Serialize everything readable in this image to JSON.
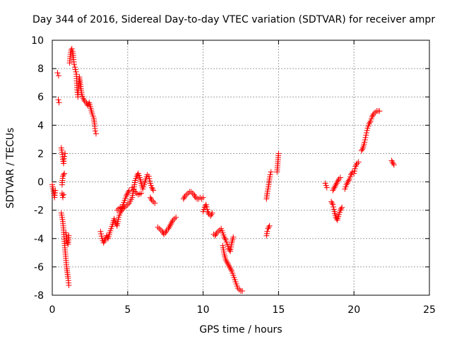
{
  "chart_data": {
    "type": "scatter",
    "title": "Day 344 of 2016, Sidereal Day-to-day VTEC variation (SDTVAR) for receiver ampr",
    "xlabel": "GPS time / hours",
    "ylabel": "SDTVAR / TECUs",
    "xlim": [
      0,
      25
    ],
    "ylim": [
      -8,
      10
    ],
    "xticks": [
      0,
      5,
      10,
      15,
      20,
      25
    ],
    "yticks": [
      -8,
      -6,
      -4,
      -2,
      0,
      2,
      4,
      6,
      8,
      10
    ],
    "grid": true,
    "marker": "+",
    "color": "#ff0000",
    "segments": [
      [
        [
          0.0,
          -0.2
        ],
        [
          0.05,
          -0.5
        ],
        [
          0.1,
          -0.8
        ],
        [
          0.15,
          -1.1
        ],
        [
          0.2,
          -0.6
        ]
      ],
      [
        [
          0.35,
          7.7
        ],
        [
          0.42,
          7.5
        ]
      ],
      [
        [
          0.4,
          5.8
        ],
        [
          0.45,
          5.6
        ]
      ],
      [
        [
          0.6,
          2.4
        ],
        [
          0.65,
          2.1
        ],
        [
          0.7,
          1.6
        ],
        [
          0.75,
          1.3
        ],
        [
          0.8,
          1.8
        ],
        [
          0.85,
          2.0
        ]
      ],
      [
        [
          0.65,
          -0.2
        ],
        [
          0.7,
          0.4
        ],
        [
          0.8,
          0.6
        ]
      ],
      [
        [
          0.65,
          -0.8
        ],
        [
          0.7,
          -1.1
        ],
        [
          0.75,
          -0.9
        ]
      ],
      [
        [
          0.6,
          -2.2
        ],
        [
          0.7,
          -2.8
        ],
        [
          0.75,
          -3.4
        ],
        [
          0.8,
          -4.2
        ],
        [
          0.85,
          -4.8
        ],
        [
          0.9,
          -5.4
        ],
        [
          0.95,
          -6.0
        ],
        [
          1.0,
          -6.4
        ],
        [
          1.05,
          -6.8
        ],
        [
          1.1,
          -7.3
        ]
      ],
      [
        [
          0.9,
          -3.6
        ],
        [
          0.95,
          -4.0
        ],
        [
          1.0,
          -4.3
        ],
        [
          1.05,
          -4.4
        ],
        [
          1.1,
          -3.8
        ]
      ],
      [
        [
          1.3,
          9.4
        ],
        [
          1.35,
          9.2
        ],
        [
          1.4,
          8.8
        ],
        [
          1.45,
          8.3
        ],
        [
          1.5,
          8.1
        ],
        [
          1.6,
          7.6
        ],
        [
          1.65,
          6.5
        ],
        [
          1.7,
          6.0
        ],
        [
          1.75,
          6.8
        ],
        [
          1.8,
          7.4
        ],
        [
          1.85,
          7.0
        ],
        [
          1.9,
          6.6
        ],
        [
          1.95,
          6.2
        ],
        [
          2.05,
          5.9
        ],
        [
          2.15,
          5.7
        ],
        [
          2.25,
          5.6
        ],
        [
          2.35,
          5.4
        ],
        [
          2.45,
          5.6
        ],
        [
          2.55,
          5.2
        ],
        [
          2.65,
          4.8
        ],
        [
          2.75,
          4.5
        ],
        [
          2.8,
          4.1
        ],
        [
          2.85,
          3.6
        ],
        [
          2.9,
          3.4
        ]
      ],
      [
        [
          1.15,
          8.4
        ],
        [
          1.2,
          9.0
        ],
        [
          1.25,
          9.3
        ]
      ],
      [
        [
          3.2,
          -3.5
        ],
        [
          3.3,
          -4.0
        ],
        [
          3.4,
          -4.3
        ],
        [
          3.5,
          -4.1
        ],
        [
          3.6,
          -3.8
        ],
        [
          3.7,
          -4.0
        ],
        [
          3.8,
          -3.6
        ],
        [
          3.9,
          -3.3
        ],
        [
          4.0,
          -3.0
        ],
        [
          4.1,
          -2.6
        ],
        [
          4.2,
          -2.9
        ],
        [
          4.3,
          -3.1
        ],
        [
          4.4,
          -2.5
        ],
        [
          4.5,
          -2.2
        ],
        [
          4.6,
          -2.0
        ],
        [
          4.7,
          -1.6
        ],
        [
          4.8,
          -1.3
        ],
        [
          4.9,
          -1.0
        ],
        [
          5.0,
          -0.8
        ],
        [
          5.1,
          -0.6
        ]
      ],
      [
        [
          4.3,
          -2.0
        ],
        [
          4.5,
          -1.8
        ],
        [
          4.7,
          -1.9
        ],
        [
          4.9,
          -1.7
        ],
        [
          5.1,
          -1.5
        ],
        [
          5.3,
          -1.1
        ],
        [
          5.4,
          -0.5
        ],
        [
          5.5,
          0.1
        ],
        [
          5.6,
          0.4
        ],
        [
          5.7,
          0.6
        ],
        [
          5.8,
          0.3
        ],
        [
          5.9,
          -0.1
        ],
        [
          6.0,
          -0.5
        ],
        [
          6.1,
          -0.2
        ],
        [
          6.2,
          0.2
        ],
        [
          6.3,
          0.5
        ],
        [
          6.4,
          0.4
        ],
        [
          6.5,
          -0.1
        ],
        [
          6.6,
          -0.4
        ],
        [
          6.7,
          -0.6
        ]
      ],
      [
        [
          5.3,
          -0.4
        ],
        [
          5.5,
          -0.7
        ],
        [
          5.7,
          -0.9
        ],
        [
          5.9,
          -0.8
        ]
      ],
      [
        [
          6.5,
          -1.1
        ],
        [
          6.6,
          -1.3
        ],
        [
          6.7,
          -1.4
        ],
        [
          6.8,
          -1.5
        ]
      ],
      [
        [
          7.0,
          -3.2
        ],
        [
          7.1,
          -3.3
        ],
        [
          7.2,
          -3.4
        ],
        [
          7.3,
          -3.5
        ],
        [
          7.4,
          -3.7
        ],
        [
          7.5,
          -3.6
        ],
        [
          7.6,
          -3.4
        ],
        [
          7.7,
          -3.3
        ],
        [
          7.8,
          -3.1
        ],
        [
          7.9,
          -2.9
        ],
        [
          8.0,
          -2.7
        ],
        [
          8.1,
          -2.6
        ],
        [
          8.2,
          -2.5
        ]
      ],
      [
        [
          8.7,
          -1.2
        ],
        [
          8.8,
          -1.0
        ],
        [
          8.9,
          -0.9
        ],
        [
          9.0,
          -0.8
        ],
        [
          9.1,
          -0.7
        ],
        [
          9.2,
          -0.7
        ],
        [
          9.3,
          -0.8
        ],
        [
          9.4,
          -0.9
        ],
        [
          9.5,
          -1.1
        ],
        [
          9.6,
          -1.2
        ],
        [
          9.7,
          -1.2
        ],
        [
          9.8,
          -1.1
        ],
        [
          9.9,
          -1.2
        ],
        [
          10.0,
          -1.1
        ]
      ],
      [
        [
          10.0,
          -2.1
        ],
        [
          10.1,
          -1.8
        ],
        [
          10.2,
          -1.6
        ],
        [
          10.3,
          -2.1
        ],
        [
          10.4,
          -2.3
        ],
        [
          10.5,
          -2.4
        ],
        [
          10.6,
          -2.2
        ]
      ],
      [
        [
          10.7,
          -3.7
        ],
        [
          10.8,
          -3.8
        ],
        [
          10.9,
          -3.6
        ],
        [
          11.0,
          -3.5
        ],
        [
          11.1,
          -3.4
        ],
        [
          11.2,
          -3.3
        ],
        [
          11.3,
          -3.6
        ],
        [
          11.4,
          -3.9
        ],
        [
          11.5,
          -4.1
        ],
        [
          11.6,
          -4.4
        ],
        [
          11.7,
          -4.7
        ],
        [
          11.8,
          -4.9
        ],
        [
          11.9,
          -4.3
        ],
        [
          12.0,
          -3.9
        ]
      ],
      [
        [
          11.3,
          -4.5
        ],
        [
          11.4,
          -5.1
        ],
        [
          11.5,
          -5.5
        ],
        [
          11.6,
          -5.7
        ],
        [
          11.7,
          -5.9
        ],
        [
          11.8,
          -6.1
        ],
        [
          11.9,
          -6.3
        ],
        [
          12.0,
          -6.6
        ],
        [
          12.1,
          -6.9
        ],
        [
          12.2,
          -7.2
        ],
        [
          12.3,
          -7.5
        ],
        [
          12.4,
          -7.6
        ],
        [
          12.5,
          -7.7
        ],
        [
          12.6,
          -7.7
        ]
      ],
      [
        [
          14.2,
          -3.8
        ],
        [
          14.25,
          -3.5
        ],
        [
          14.3,
          -3.3
        ],
        [
          14.4,
          -3.1
        ]
      ],
      [
        [
          14.2,
          -1.2
        ],
        [
          14.25,
          -0.8
        ],
        [
          14.3,
          -0.5
        ],
        [
          14.35,
          -0.2
        ],
        [
          14.4,
          0.2
        ],
        [
          14.45,
          0.5
        ],
        [
          14.5,
          0.7
        ]
      ],
      [
        [
          14.9,
          0.7
        ],
        [
          15.0,
          2.0
        ]
      ],
      [
        [
          18.1,
          -0.1
        ],
        [
          18.2,
          -0.4
        ]
      ],
      [
        [
          18.5,
          -1.4
        ],
        [
          18.6,
          -1.6
        ],
        [
          18.7,
          -2.1
        ],
        [
          18.8,
          -2.5
        ],
        [
          18.9,
          -2.7
        ],
        [
          19.0,
          -2.3
        ],
        [
          19.1,
          -2.0
        ],
        [
          19.2,
          -1.8
        ]
      ],
      [
        [
          18.6,
          -0.6
        ],
        [
          18.7,
          -0.4
        ],
        [
          18.8,
          -0.2
        ],
        [
          18.9,
          0.0
        ],
        [
          19.0,
          0.2
        ],
        [
          19.1,
          0.3
        ]
      ],
      [
        [
          19.4,
          -0.5
        ],
        [
          19.5,
          -0.2
        ],
        [
          19.6,
          0.0
        ],
        [
          19.7,
          0.2
        ],
        [
          19.8,
          0.5
        ],
        [
          19.9,
          0.7
        ],
        [
          20.0,
          0.6
        ],
        [
          20.1,
          1.1
        ],
        [
          20.2,
          1.3
        ],
        [
          20.3,
          1.4
        ]
      ],
      [
        [
          20.5,
          2.2
        ],
        [
          20.6,
          2.4
        ],
        [
          20.7,
          2.8
        ],
        [
          20.8,
          3.3
        ],
        [
          20.9,
          3.8
        ],
        [
          21.0,
          4.1
        ],
        [
          21.1,
          4.3
        ],
        [
          21.2,
          4.6
        ],
        [
          21.3,
          4.8
        ],
        [
          21.4,
          4.9
        ],
        [
          21.5,
          5.0
        ],
        [
          21.6,
          5.0
        ],
        [
          21.7,
          5.0
        ]
      ],
      [
        [
          22.5,
          1.5
        ],
        [
          22.6,
          1.3
        ],
        [
          22.65,
          1.2
        ]
      ]
    ]
  }
}
